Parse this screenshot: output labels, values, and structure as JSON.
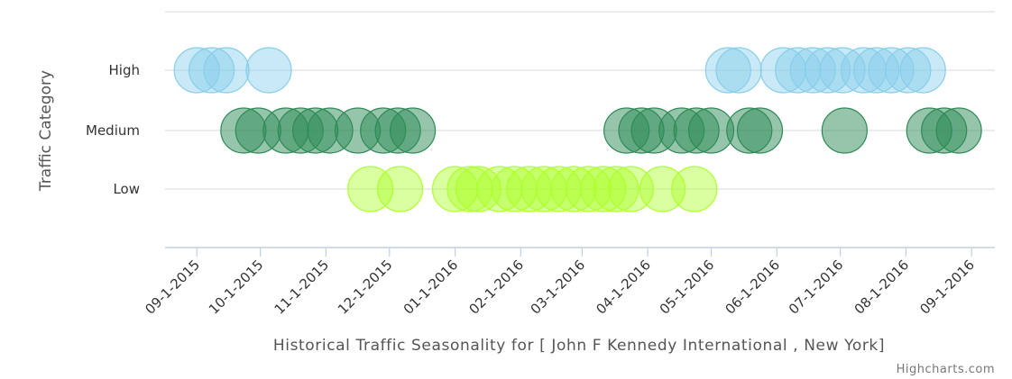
{
  "chart_data": {
    "type": "scatter",
    "title": "",
    "xlabel": "Historical Traffic Seasonality for [ John F Kennedy International , New York]",
    "ylabel": "Traffic Category",
    "categories": [
      "Low",
      "Medium",
      "High"
    ],
    "x_ticks": [
      "09-1-2015",
      "10-1-2015",
      "11-1-2015",
      "12-1-2015",
      "01-1-2016",
      "02-1-2016",
      "03-1-2016",
      "04-1-2016",
      "05-1-2016",
      "06-1-2016",
      "07-1-2016",
      "08-1-2016",
      "09-1-2016"
    ],
    "xlim": [
      "2015-08-17",
      "2016-09-12"
    ],
    "grid": true,
    "credit": "Highcharts.com",
    "colors": {
      "High": "#87ceeb",
      "Medium": "#2e8b57",
      "Low": "#adff2f",
      "grid": "#d8d8d8",
      "axis": "#c0d0e0"
    },
    "series": [
      {
        "category": "High",
        "points": [
          "2015-09-01",
          "2015-09-08",
          "2015-09-15",
          "2015-10-05",
          "2016-05-09",
          "2016-05-14",
          "2016-06-04",
          "2016-06-11",
          "2016-06-18",
          "2016-06-25",
          "2016-07-02",
          "2016-07-12",
          "2016-07-18",
          "2016-07-25",
          "2016-08-02",
          "2016-08-09"
        ]
      },
      {
        "category": "Medium",
        "points": [
          "2015-09-23",
          "2015-09-30",
          "2015-10-13",
          "2015-10-20",
          "2015-10-27",
          "2015-11-03",
          "2015-11-16",
          "2015-11-28",
          "2015-12-05",
          "2015-12-12",
          "2016-03-22",
          "2016-03-29",
          "2016-04-04",
          "2016-04-17",
          "2016-04-24",
          "2016-05-01",
          "2016-05-19",
          "2016-05-24",
          "2016-07-03",
          "2016-08-12",
          "2016-08-19",
          "2016-08-26"
        ]
      },
      {
        "category": "Low",
        "points": [
          "2015-11-22",
          "2015-12-06",
          "2016-01-01",
          "2016-01-08",
          "2016-01-12",
          "2016-01-22",
          "2016-01-29",
          "2016-02-05",
          "2016-02-12",
          "2016-02-19",
          "2016-02-26",
          "2016-03-04",
          "2016-03-11",
          "2016-03-17",
          "2016-03-24",
          "2016-04-08",
          "2016-04-23"
        ]
      }
    ]
  }
}
